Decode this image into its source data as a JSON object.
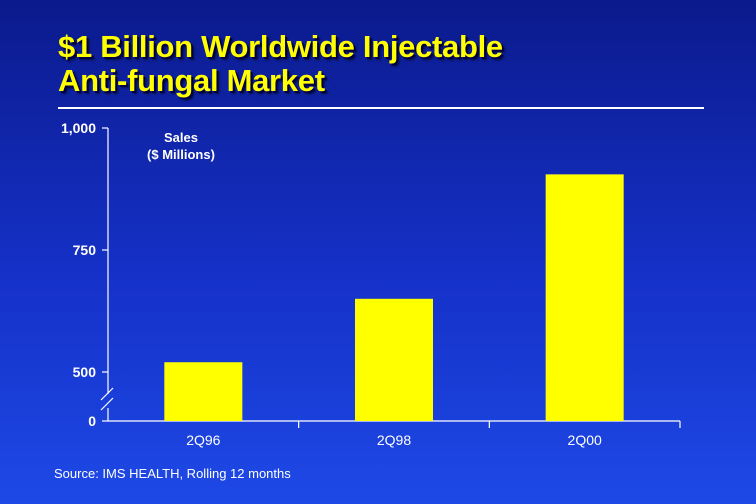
{
  "title": {
    "line1": "$1 Billion Worldwide Injectable",
    "line2": "Anti-fungal Market"
  },
  "colors": {
    "background": "#1531c8",
    "title": "#ffff00",
    "bar": "#ffff00",
    "axis": "#ffffff",
    "text": "#ffffff"
  },
  "source_note": "Source: IMS HEALTH, Rolling 12 months",
  "chart_data": {
    "type": "bar",
    "ylabel_lines": [
      "Sales",
      "($ Millions)"
    ],
    "xlabel": "",
    "categories": [
      "2Q96",
      "2Q98",
      "2Q00"
    ],
    "values": [
      520,
      650,
      905
    ],
    "yticks": [
      {
        "value": 0,
        "label": "0"
      },
      {
        "value": 500,
        "label": "500"
      },
      {
        "value": 750,
        "label": "750"
      },
      {
        "value": 1000,
        "label": "1,000"
      }
    ],
    "ylim": [
      0,
      1000
    ],
    "broken_axis": {
      "from": 0,
      "to": 440
    },
    "grid": false,
    "legend": "none"
  }
}
